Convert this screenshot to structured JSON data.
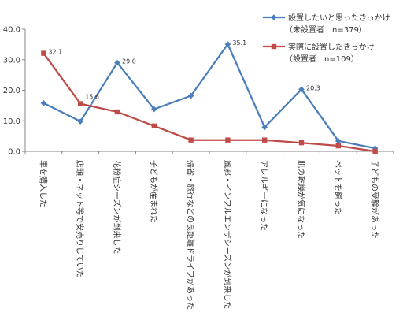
{
  "chart_data": {
    "type": "line",
    "title": "",
    "xlabel": "",
    "ylabel": "",
    "ylim": [
      0,
      40
    ],
    "yticks": [
      "0.0",
      "10.0",
      "20.0",
      "30.0",
      "40.0"
    ],
    "grid": false,
    "legend_position": "top-right",
    "categories": [
      "車を購入した",
      "店頭・ネット等で安売りしていた",
      "花粉症シーズンが到来した",
      "子どもが産まれた",
      "帰省・旅行などの長距離ドライブがあった",
      "風邪・インフルエンザシーズンが到来した",
      "アレルギーになった",
      "肌の乾燥が気になった",
      "ペットを飼った",
      "子どもの受験があった"
    ],
    "series": [
      {
        "name": "設置したいと思ったきっかけ",
        "sub": "（未設置者　n=379）",
        "color": "#4a7ebb",
        "marker": "diamond",
        "values": [
          15.8,
          9.8,
          29.0,
          13.8,
          18.2,
          35.1,
          7.9,
          20.3,
          3.4,
          1.0
        ],
        "labels": [
          "",
          "",
          "29.0",
          "",
          "",
          "35.1",
          "",
          "20.3",
          "",
          ""
        ]
      },
      {
        "name": "実際に設置したきっかけ",
        "sub": "（設置者　n=109）",
        "color": "#be4b48",
        "marker": "square",
        "values": [
          32.1,
          15.6,
          12.9,
          8.3,
          3.7,
          3.7,
          3.7,
          2.8,
          1.8,
          0.0
        ],
        "labels": [
          "32.1",
          "15.6",
          "",
          "",
          "",
          "",
          "",
          "",
          "",
          ""
        ]
      }
    ]
  }
}
